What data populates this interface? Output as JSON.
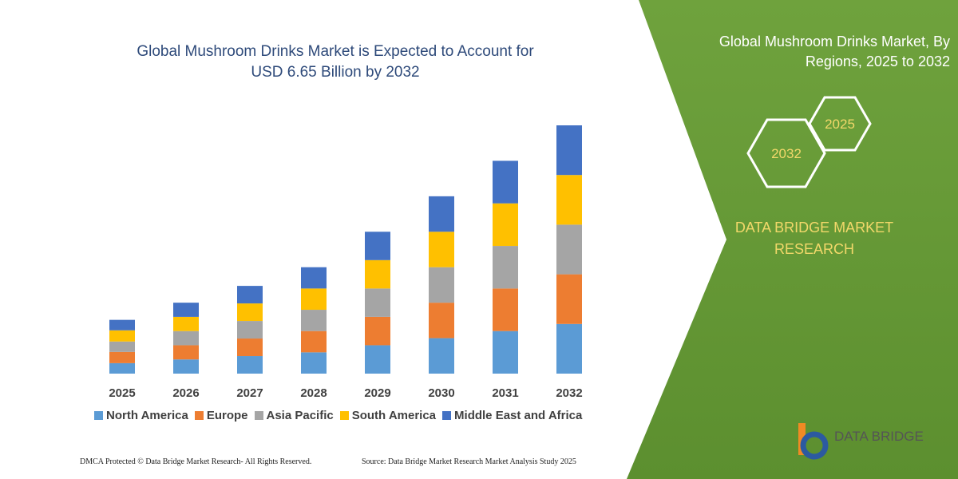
{
  "chart_data": {
    "type": "bar",
    "stacked": true,
    "title": [
      "Global Mushroom Drinks Market is Expected to Account for",
      "USD 6.65 Billion by 2032"
    ],
    "categories": [
      "2025",
      "2026",
      "2027",
      "2028",
      "2029",
      "2030",
      "2031",
      "2032"
    ],
    "series": [
      {
        "name": "North America",
        "color": "#5b9bd5",
        "values": [
          0.28,
          0.38,
          0.47,
          0.57,
          0.76,
          0.95,
          1.14,
          1.33
        ]
      },
      {
        "name": "Europe",
        "color": "#ed7d31",
        "values": [
          0.3,
          0.38,
          0.47,
          0.57,
          0.76,
          0.95,
          1.14,
          1.33
        ]
      },
      {
        "name": "Asia Pacific",
        "color": "#a5a5a5",
        "values": [
          0.28,
          0.38,
          0.47,
          0.57,
          0.76,
          0.95,
          1.14,
          1.33
        ]
      },
      {
        "name": "South America",
        "color": "#ffc000",
        "values": [
          0.3,
          0.38,
          0.47,
          0.57,
          0.76,
          0.95,
          1.14,
          1.33
        ]
      },
      {
        "name": "Middle East and Africa",
        "color": "#4472c4",
        "values": [
          0.28,
          0.38,
          0.47,
          0.57,
          0.76,
          0.95,
          1.14,
          1.33
        ]
      }
    ]
  },
  "panel": {
    "title": [
      "Global Mushroom Drinks Market, By",
      "Regions, 2025 to 2032"
    ],
    "hexagons": [
      "2032",
      "2025"
    ],
    "brand": [
      "DATA BRIDGE MARKET",
      "RESEARCH"
    ]
  },
  "logo": {
    "text": "DATA BRIDGE"
  },
  "footer": {
    "left": "DMCA Protected © Data Bridge Market Research-  All Rights Reserved.",
    "right": "Source: Data Bridge Market Research  Market Analysis Study 2025"
  }
}
